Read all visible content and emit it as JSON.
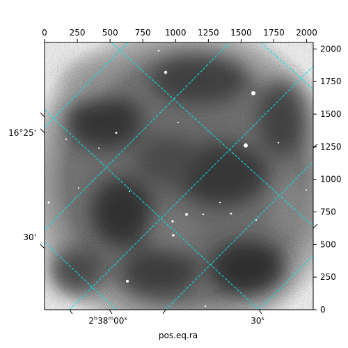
{
  "figure": {
    "xlabel": "pos.eq.ra",
    "image_kind": "grayscale astronomical image with WCS grid overlay",
    "grid_color": "#00e5e5"
  },
  "axes": {
    "top_ticks": [
      "0",
      "250",
      "500",
      "750",
      "1000",
      "1250",
      "1500",
      "1750",
      "2000"
    ],
    "right_ticks": [
      "0",
      "250",
      "500",
      "750",
      "1000",
      "1250",
      "1500",
      "1750",
      "2000"
    ],
    "left_ticks": [
      "16°25'",
      "30'"
    ],
    "bottom_ticks": [
      {
        "h": "2",
        "m": "38",
        "s": "00"
      },
      {
        "s_only": "30"
      }
    ]
  }
}
